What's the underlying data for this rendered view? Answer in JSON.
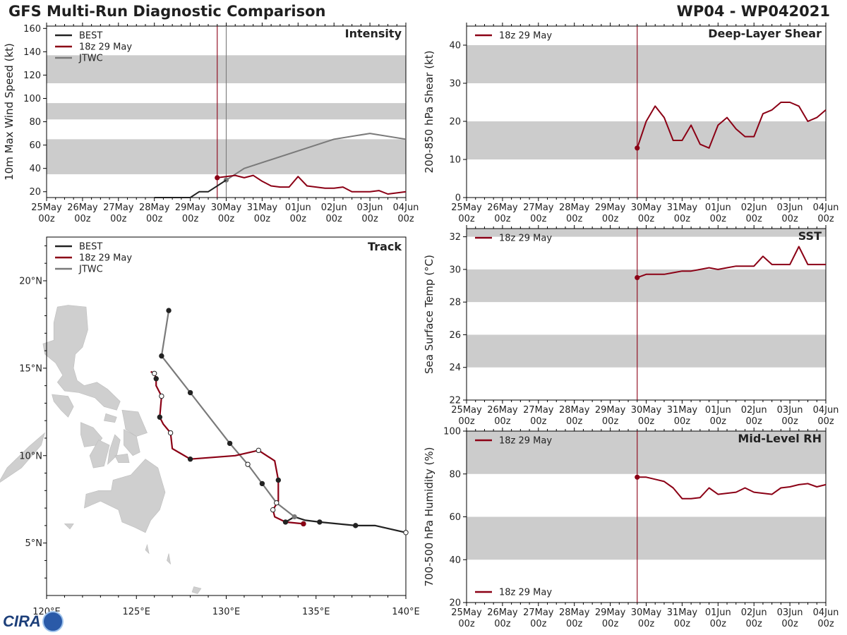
{
  "header": {
    "title": "GFS Multi-Run Diagnostic Comparison",
    "storm": "WP04 - WP042021"
  },
  "logo": {
    "text": "CIRA"
  },
  "colors": {
    "best": "#222222",
    "gfs": "#8b0015",
    "jtwc": "#7a7a7a",
    "band": "#cccccc",
    "land": "#cfcfcf"
  },
  "time_ticks": [
    [
      "25May",
      "00z"
    ],
    [
      "26May",
      "00z"
    ],
    [
      "27May",
      "00z"
    ],
    [
      "28May",
      "00z"
    ],
    [
      "29May",
      "00z"
    ],
    [
      "30May",
      "00z"
    ],
    [
      "31May",
      "00z"
    ],
    [
      "01Jun",
      "00z"
    ],
    [
      "02Jun",
      "00z"
    ],
    [
      "03Jun",
      "00z"
    ],
    [
      "04Jun",
      "00z"
    ]
  ],
  "chart_data": [
    {
      "id": "intensity",
      "type": "line",
      "title": "Intensity",
      "ylabel": "10m Max Wind Speed (kt)",
      "x_unit": "days since 25May 00z",
      "xlim": [
        0,
        10
      ],
      "ylim": [
        15,
        162
      ],
      "yticks": [
        20,
        40,
        60,
        80,
        100,
        120,
        140,
        160
      ],
      "bands": [
        [
          35,
          65
        ],
        [
          82,
          96
        ],
        [
          113,
          137
        ]
      ],
      "vlines": [
        {
          "x": 4.75,
          "series": "18z 29 May"
        },
        {
          "x": 5.0,
          "series": "JTWC"
        }
      ],
      "legend_position": "top-left",
      "series": [
        {
          "name": "BEST",
          "color": "#222222",
          "x": [
            3.0,
            3.25,
            3.5,
            3.75,
            4.0,
            4.25,
            4.5,
            4.75,
            5.0
          ],
          "y": [
            15,
            15,
            15,
            15,
            15,
            20,
            20,
            25,
            30
          ]
        },
        {
          "name": "18z 29 May",
          "color": "#8b0015",
          "start_marker": true,
          "x": [
            4.75,
            5.0,
            5.25,
            5.5,
            5.75,
            6.0,
            6.25,
            6.5,
            6.75,
            7.0,
            7.25,
            7.5,
            7.75,
            8.0,
            8.25,
            8.5,
            8.75,
            9.0,
            9.25,
            9.5,
            9.75,
            10.0
          ],
          "y": [
            32,
            33,
            34,
            32,
            34,
            29,
            25,
            24,
            24,
            33,
            25,
            24,
            23,
            23,
            24,
            20,
            20,
            20,
            21,
            18,
            19,
            20
          ]
        },
        {
          "name": "JTWC",
          "color": "#7a7a7a",
          "start_marker": true,
          "x": [
            5.0,
            5.5,
            8.0,
            9.0,
            10.0
          ],
          "y": [
            30,
            40,
            65,
            70,
            65
          ]
        }
      ]
    },
    {
      "id": "shear",
      "type": "line",
      "title": "Deep-Layer Shear",
      "ylabel": "200-850 hPa Shear (kt)",
      "xlim": [
        0,
        10
      ],
      "ylim": [
        0,
        45
      ],
      "yticks": [
        0,
        10,
        20,
        30,
        40
      ],
      "bands": [
        [
          10,
          20
        ],
        [
          30,
          40
        ]
      ],
      "vlines": [
        {
          "x": 4.75,
          "series": "18z 29 May"
        }
      ],
      "legend_position": "top-left",
      "series": [
        {
          "name": "18z 29 May",
          "color": "#8b0015",
          "start_marker": true,
          "x": [
            4.75,
            5.0,
            5.25,
            5.5,
            5.75,
            6.0,
            6.25,
            6.5,
            6.75,
            7.0,
            7.25,
            7.5,
            7.75,
            8.0,
            8.25,
            8.5,
            8.75,
            9.0,
            9.25,
            9.5,
            9.75,
            10.0
          ],
          "y": [
            13,
            20,
            24,
            21,
            15,
            15,
            19,
            14,
            13,
            19,
            21,
            18,
            16,
            16,
            22,
            23,
            25,
            25,
            24,
            20,
            21,
            23
          ]
        }
      ]
    },
    {
      "id": "sst",
      "type": "line",
      "title": "SST",
      "ylabel": "Sea Surface Temp (°C)",
      "xlim": [
        0,
        10
      ],
      "ylim": [
        22,
        32.5
      ],
      "yticks": [
        22,
        24,
        26,
        28,
        30,
        32
      ],
      "bands": [
        [
          24,
          26
        ],
        [
          28,
          30
        ],
        [
          32,
          32.5
        ]
      ],
      "vlines": [
        {
          "x": 4.75,
          "series": "18z 29 May"
        }
      ],
      "legend_position": "top-left",
      "series": [
        {
          "name": "18z 29 May",
          "color": "#8b0015",
          "start_marker": true,
          "x": [
            4.75,
            5.0,
            5.25,
            5.5,
            5.75,
            6.0,
            6.25,
            6.5,
            6.75,
            7.0,
            7.25,
            7.5,
            7.75,
            8.0,
            8.25,
            8.5,
            8.75,
            9.0,
            9.25,
            9.5,
            9.75,
            10.0
          ],
          "y": [
            29.5,
            29.7,
            29.7,
            29.7,
            29.8,
            29.9,
            29.9,
            30.0,
            30.1,
            30.0,
            30.1,
            30.2,
            30.2,
            30.2,
            30.8,
            30.3,
            30.3,
            30.3,
            31.4,
            30.3,
            30.3,
            30.3
          ]
        }
      ]
    },
    {
      "id": "rh",
      "type": "line",
      "title": "Mid-Level RH",
      "ylabel": "700-500 hPa Humidity (%)",
      "xlim": [
        0,
        10
      ],
      "ylim": [
        20,
        100
      ],
      "yticks": [
        20,
        40,
        60,
        80,
        100
      ],
      "bands": [
        [
          40,
          60
        ],
        [
          80,
          100
        ]
      ],
      "vlines": [
        {
          "x": 4.75,
          "series": "18z 29 May"
        }
      ],
      "legend_position": "top-left and bottom-left",
      "series": [
        {
          "name": "18z 29 May",
          "color": "#8b0015",
          "start_marker": true,
          "x": [
            4.75,
            5.0,
            5.25,
            5.5,
            5.75,
            6.0,
            6.25,
            6.5,
            6.75,
            7.0,
            7.25,
            7.5,
            7.75,
            8.0,
            8.25,
            8.5,
            8.75,
            9.0,
            9.25,
            9.5,
            9.75,
            10.0
          ],
          "y": [
            78.5,
            78.5,
            77.5,
            76.5,
            73.5,
            68.5,
            68.5,
            69.0,
            73.5,
            70.5,
            71.0,
            71.5,
            73.5,
            71.5,
            71.0,
            70.5,
            73.5,
            74.0,
            75.0,
            75.5,
            74.0,
            75.0
          ]
        }
      ]
    },
    {
      "id": "track",
      "type": "scatter",
      "title": "Track",
      "xlim": [
        120,
        140
      ],
      "ylim": [
        2,
        22.5
      ],
      "xticks": [
        120,
        125,
        130,
        135,
        140
      ],
      "xtick_labels": [
        "120°E",
        "125°E",
        "130°E",
        "135°E",
        "140°E"
      ],
      "yticks": [
        5,
        10,
        15,
        20
      ],
      "ytick_labels": [
        "5°N",
        "10°N",
        "15°N",
        "20°N"
      ],
      "legend_position": "top-left",
      "series": [
        {
          "name": "BEST",
          "color": "#222222",
          "lon": [
            140.0,
            138.3,
            137.2,
            136.2,
            135.2,
            134.4,
            133.8,
            133.3
          ],
          "lat": [
            5.6,
            6.0,
            6.0,
            6.1,
            6.2,
            6.3,
            6.5,
            6.2
          ],
          "open": [
            0
          ],
          "marks": [
            0,
            2,
            4,
            7
          ]
        },
        {
          "name": "18z 29 May",
          "color": "#8b0015",
          "lon": [
            134.3,
            133.3,
            132.7,
            132.6,
            132.9,
            132.9,
            132.7,
            131.8,
            130.5,
            128.0,
            127.0,
            126.9,
            126.5,
            126.3,
            126.4,
            126.1,
            126.1,
            126.0,
            125.8
          ],
          "lat": [
            6.1,
            6.2,
            6.5,
            6.9,
            7.4,
            8.6,
            9.7,
            10.3,
            10.0,
            9.8,
            10.4,
            11.3,
            11.8,
            12.2,
            13.4,
            14.0,
            14.4,
            14.7,
            14.8
          ],
          "start_marker": true,
          "open": [
            3,
            7,
            11,
            14,
            17
          ],
          "marks": [
            0,
            3,
            5,
            7,
            9,
            11,
            13,
            14,
            16,
            17
          ]
        },
        {
          "name": "JTWC",
          "color": "#7a7a7a",
          "lon": [
            133.8,
            132.8,
            132.0,
            131.2,
            130.2,
            128.0,
            126.4,
            126.8
          ],
          "lat": [
            6.5,
            7.3,
            8.4,
            9.5,
            10.7,
            13.6,
            15.7,
            18.3
          ],
          "start_marker": true,
          "open": [
            1,
            3
          ],
          "marks": [
            1,
            2,
            3,
            4,
            5,
            6,
            7
          ]
        }
      ]
    }
  ]
}
